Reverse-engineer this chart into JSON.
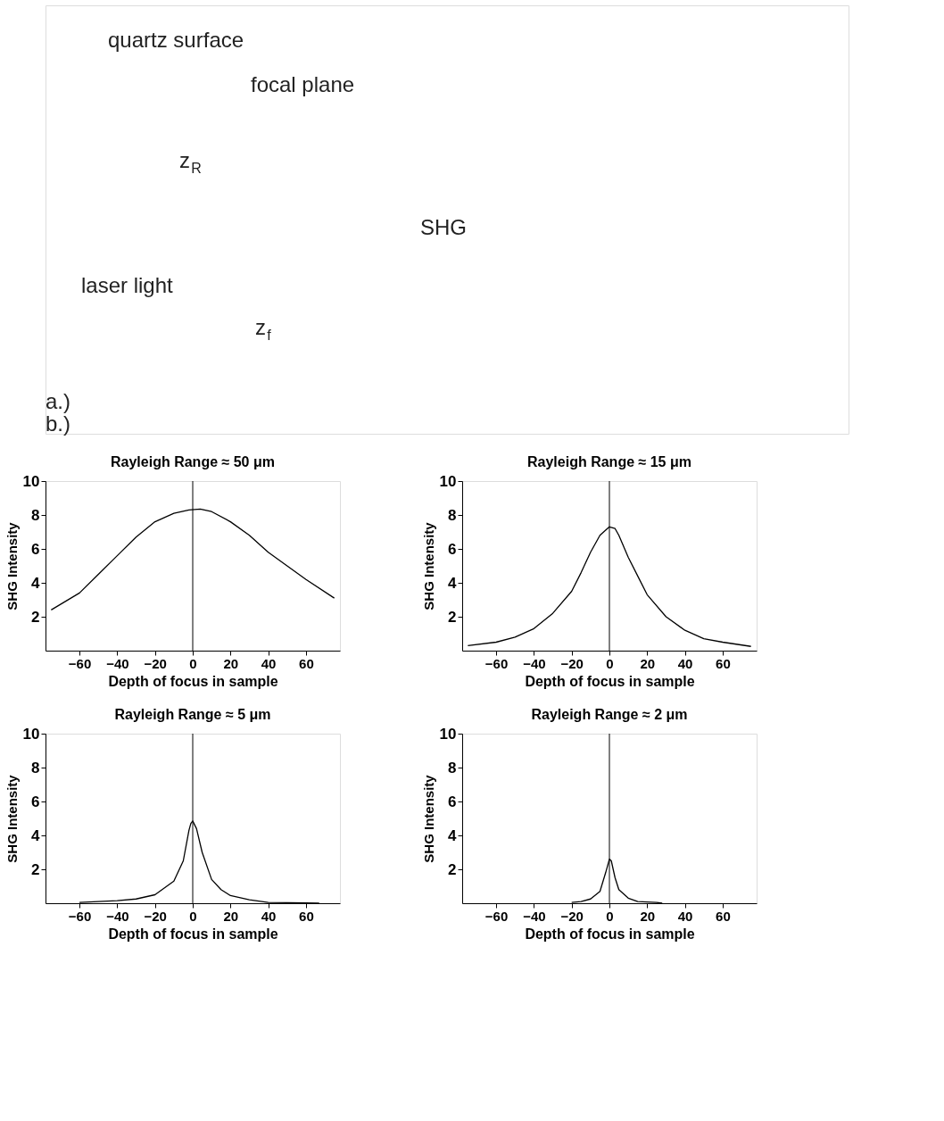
{
  "chart_data": [
    {
      "type": "other",
      "annotations": [
        "quartz surface",
        "focal plane",
        "z$_{R}$",
        "SHG",
        "laser light",
        "z$_{f}$",
        "a.)",
        "b.)"
      ]
    },
    {
      "type": "line",
      "title": "Rayleigh Range ≈ 50 μm",
      "xlabel": "Depth of focus in sample",
      "ylabel": "SHG Intensity",
      "xlim": [
        -78,
        78
      ],
      "ylim": [
        0,
        10
      ],
      "xticks": [
        -60,
        -40,
        -20,
        0,
        20,
        40,
        60
      ],
      "yticks": [
        2,
        4,
        6,
        8,
        10
      ],
      "grid": false,
      "marker": "none",
      "ref_lines": [
        {
          "axis": "x",
          "value": 0,
          "color": "#000000"
        }
      ],
      "series": [
        {
          "color": "#000000",
          "x": [
            -75,
            -60,
            -50,
            -40,
            -30,
            -20,
            -10,
            -2,
            4,
            10,
            20,
            30,
            40,
            50,
            60,
            75
          ],
          "values": [
            2.4,
            3.4,
            4.5,
            5.6,
            6.7,
            7.6,
            8.1,
            8.3,
            8.35,
            8.2,
            7.6,
            6.8,
            5.8,
            5.0,
            4.2,
            3.1
          ]
        }
      ]
    },
    {
      "type": "line",
      "title": "Rayleigh Range ≈ 15 μm",
      "xlabel": "Depth of focus in sample",
      "ylabel": "SHG Intensity",
      "xlim": [
        -78,
        78
      ],
      "ylim": [
        0,
        10
      ],
      "xticks": [
        -60,
        -40,
        -20,
        0,
        20,
        40,
        60
      ],
      "yticks": [
        2,
        4,
        6,
        8,
        10
      ],
      "grid": false,
      "marker": "none",
      "ref_lines": [
        {
          "axis": "x",
          "value": 0,
          "color": "#000000"
        }
      ],
      "series": [
        {
          "color": "#000000",
          "x": [
            -75,
            -60,
            -50,
            -40,
            -30,
            -20,
            -15,
            -10,
            -5,
            -2,
            0,
            3,
            5,
            10,
            15,
            20,
            30,
            40,
            50,
            60,
            75
          ],
          "values": [
            0.3,
            0.5,
            0.8,
            1.3,
            2.2,
            3.5,
            4.6,
            5.8,
            6.8,
            7.1,
            7.3,
            7.2,
            6.8,
            5.5,
            4.4,
            3.3,
            2.0,
            1.2,
            0.7,
            0.5,
            0.25
          ]
        }
      ]
    },
    {
      "type": "line",
      "title": "Rayleigh Range ≈ 5 μm",
      "xlabel": "Depth of focus in sample",
      "ylabel": "SHG Intensity",
      "xlim": [
        -78,
        78
      ],
      "ylim": [
        0,
        10
      ],
      "xticks": [
        -60,
        -40,
        -20,
        0,
        20,
        40,
        60
      ],
      "yticks": [
        2,
        4,
        6,
        8,
        10
      ],
      "grid": false,
      "marker": "none",
      "ref_lines": [
        {
          "axis": "x",
          "value": 0,
          "color": "#000000"
        }
      ],
      "series": [
        {
          "color": "#000000",
          "x": [
            -60,
            -40,
            -30,
            -20,
            -10,
            -5,
            -2,
            -1,
            0,
            2,
            5,
            10,
            15,
            20,
            30,
            40,
            60,
            67
          ],
          "values": [
            0.05,
            0.15,
            0.25,
            0.5,
            1.3,
            2.5,
            4.3,
            4.7,
            4.85,
            4.4,
            3.0,
            1.4,
            0.8,
            0.45,
            0.2,
            0.05,
            0.02,
            0
          ]
        }
      ]
    },
    {
      "type": "line",
      "title": "Rayleigh Range ≈ 2 μm",
      "xlabel": "Depth of focus in sample",
      "ylabel": "SHG Intensity",
      "xlim": [
        -78,
        78
      ],
      "ylim": [
        0,
        10
      ],
      "xticks": [
        -60,
        -40,
        -20,
        0,
        20,
        40,
        60
      ],
      "yticks": [
        2,
        4,
        6,
        8,
        10
      ],
      "grid": false,
      "marker": "none",
      "ref_lines": [
        {
          "axis": "x",
          "value": 0,
          "color": "#000000"
        }
      ],
      "series": [
        {
          "color": "#000000",
          "x": [
            -20,
            -15,
            -10,
            -5,
            -2,
            0,
            1,
            3,
            5,
            10,
            15,
            25,
            28
          ],
          "values": [
            0.05,
            0.1,
            0.25,
            0.7,
            1.8,
            2.6,
            2.5,
            1.5,
            0.8,
            0.3,
            0.1,
            0.05,
            0
          ]
        }
      ]
    }
  ]
}
